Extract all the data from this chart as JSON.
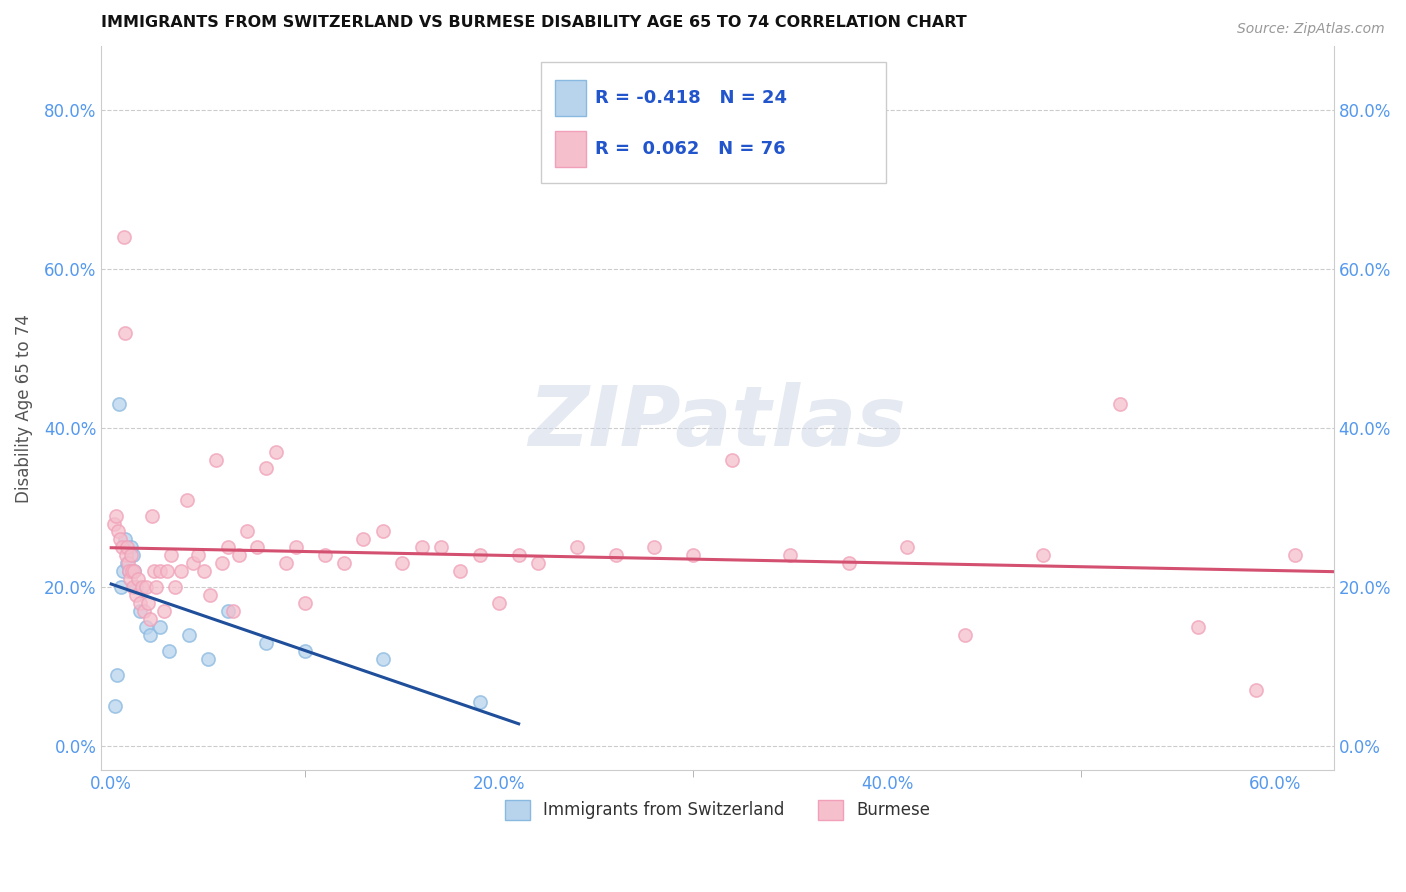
{
  "title": "IMMIGRANTS FROM SWITZERLAND VS BURMESE DISABILITY AGE 65 TO 74 CORRELATION CHART",
  "source": "Source: ZipAtlas.com",
  "ylabel": "Disability Age 65 to 74",
  "x_tick_labels": [
    "0.0%",
    "20.0%",
    "40.0%",
    "60.0%"
  ],
  "x_tick_values": [
    0.0,
    20.0,
    40.0,
    60.0
  ],
  "y_tick_labels": [
    "0.0%",
    "20.0%",
    "40.0%",
    "60.0%",
    "80.0%"
  ],
  "y_tick_values": [
    0.0,
    20.0,
    40.0,
    60.0,
    80.0
  ],
  "xlim": [
    -0.5,
    63.0
  ],
  "ylim": [
    -3.0,
    88.0
  ],
  "background_color": "#ffffff",
  "grid_color": "#cccccc",
  "swiss_color": "#89b8e0",
  "swiss_color_fill": "#b8d4ed",
  "burmese_color": "#f0a0b8",
  "burmese_color_fill": "#f5bfcc",
  "swiss_line_color": "#1f4e9a",
  "burmese_line_color": "#d45070",
  "legend_label_swiss": "Immigrants from Switzerland",
  "legend_label_burmese": "Burmese",
  "swiss_R": -0.418,
  "swiss_N": 24,
  "burmese_R": 0.062,
  "burmese_N": 76,
  "corr_box_color": "#cccccc",
  "corr_text_color": "#2255cc",
  "watermark": "ZIPatlas",
  "marker_size": 90,
  "swiss_x": [
    0.2,
    0.3,
    0.4,
    0.5,
    0.6,
    0.7,
    0.8,
    0.9,
    1.0,
    1.1,
    1.2,
    1.3,
    1.5,
    1.8,
    2.0,
    2.5,
    3.0,
    4.0,
    5.0,
    6.0,
    8.0,
    10.0,
    14.0,
    19.0
  ],
  "swiss_y": [
    5.0,
    9.0,
    43.0,
    20.0,
    22.0,
    26.0,
    23.0,
    22.0,
    25.0,
    24.0,
    22.0,
    20.0,
    17.0,
    15.0,
    14.0,
    15.0,
    12.0,
    14.0,
    11.0,
    17.0,
    13.0,
    12.0,
    11.0,
    5.5
  ],
  "burmese_x": [
    0.15,
    0.25,
    0.35,
    0.45,
    0.55,
    0.65,
    0.7,
    0.75,
    0.8,
    0.85,
    0.9,
    0.95,
    1.0,
    1.05,
    1.1,
    1.2,
    1.3,
    1.4,
    1.5,
    1.6,
    1.7,
    1.8,
    1.9,
    2.0,
    2.1,
    2.2,
    2.3,
    2.5,
    2.7,
    2.9,
    3.1,
    3.3,
    3.6,
    3.9,
    4.2,
    4.5,
    4.8,
    5.1,
    5.4,
    5.7,
    6.0,
    6.3,
    6.6,
    7.0,
    7.5,
    8.0,
    8.5,
    9.0,
    9.5,
    10.0,
    11.0,
    12.0,
    13.0,
    14.0,
    15.0,
    16.0,
    17.0,
    18.0,
    19.0,
    20.0,
    21.0,
    22.0,
    24.0,
    26.0,
    28.0,
    30.0,
    32.0,
    35.0,
    38.0,
    41.0,
    44.0,
    48.0,
    52.0,
    56.0,
    59.0,
    61.0
  ],
  "burmese_y": [
    28.0,
    29.0,
    27.0,
    26.0,
    25.0,
    64.0,
    52.0,
    24.0,
    25.0,
    23.0,
    22.0,
    21.0,
    24.0,
    22.0,
    20.0,
    22.0,
    19.0,
    21.0,
    18.0,
    20.0,
    17.0,
    20.0,
    18.0,
    16.0,
    29.0,
    22.0,
    20.0,
    22.0,
    17.0,
    22.0,
    24.0,
    20.0,
    22.0,
    31.0,
    23.0,
    24.0,
    22.0,
    19.0,
    36.0,
    23.0,
    25.0,
    17.0,
    24.0,
    27.0,
    25.0,
    35.0,
    37.0,
    23.0,
    25.0,
    18.0,
    24.0,
    23.0,
    26.0,
    27.0,
    23.0,
    25.0,
    25.0,
    22.0,
    24.0,
    18.0,
    24.0,
    23.0,
    25.0,
    24.0,
    25.0,
    24.0,
    36.0,
    24.0,
    23.0,
    25.0,
    14.0,
    24.0,
    43.0,
    15.0,
    7.0,
    24.0
  ]
}
